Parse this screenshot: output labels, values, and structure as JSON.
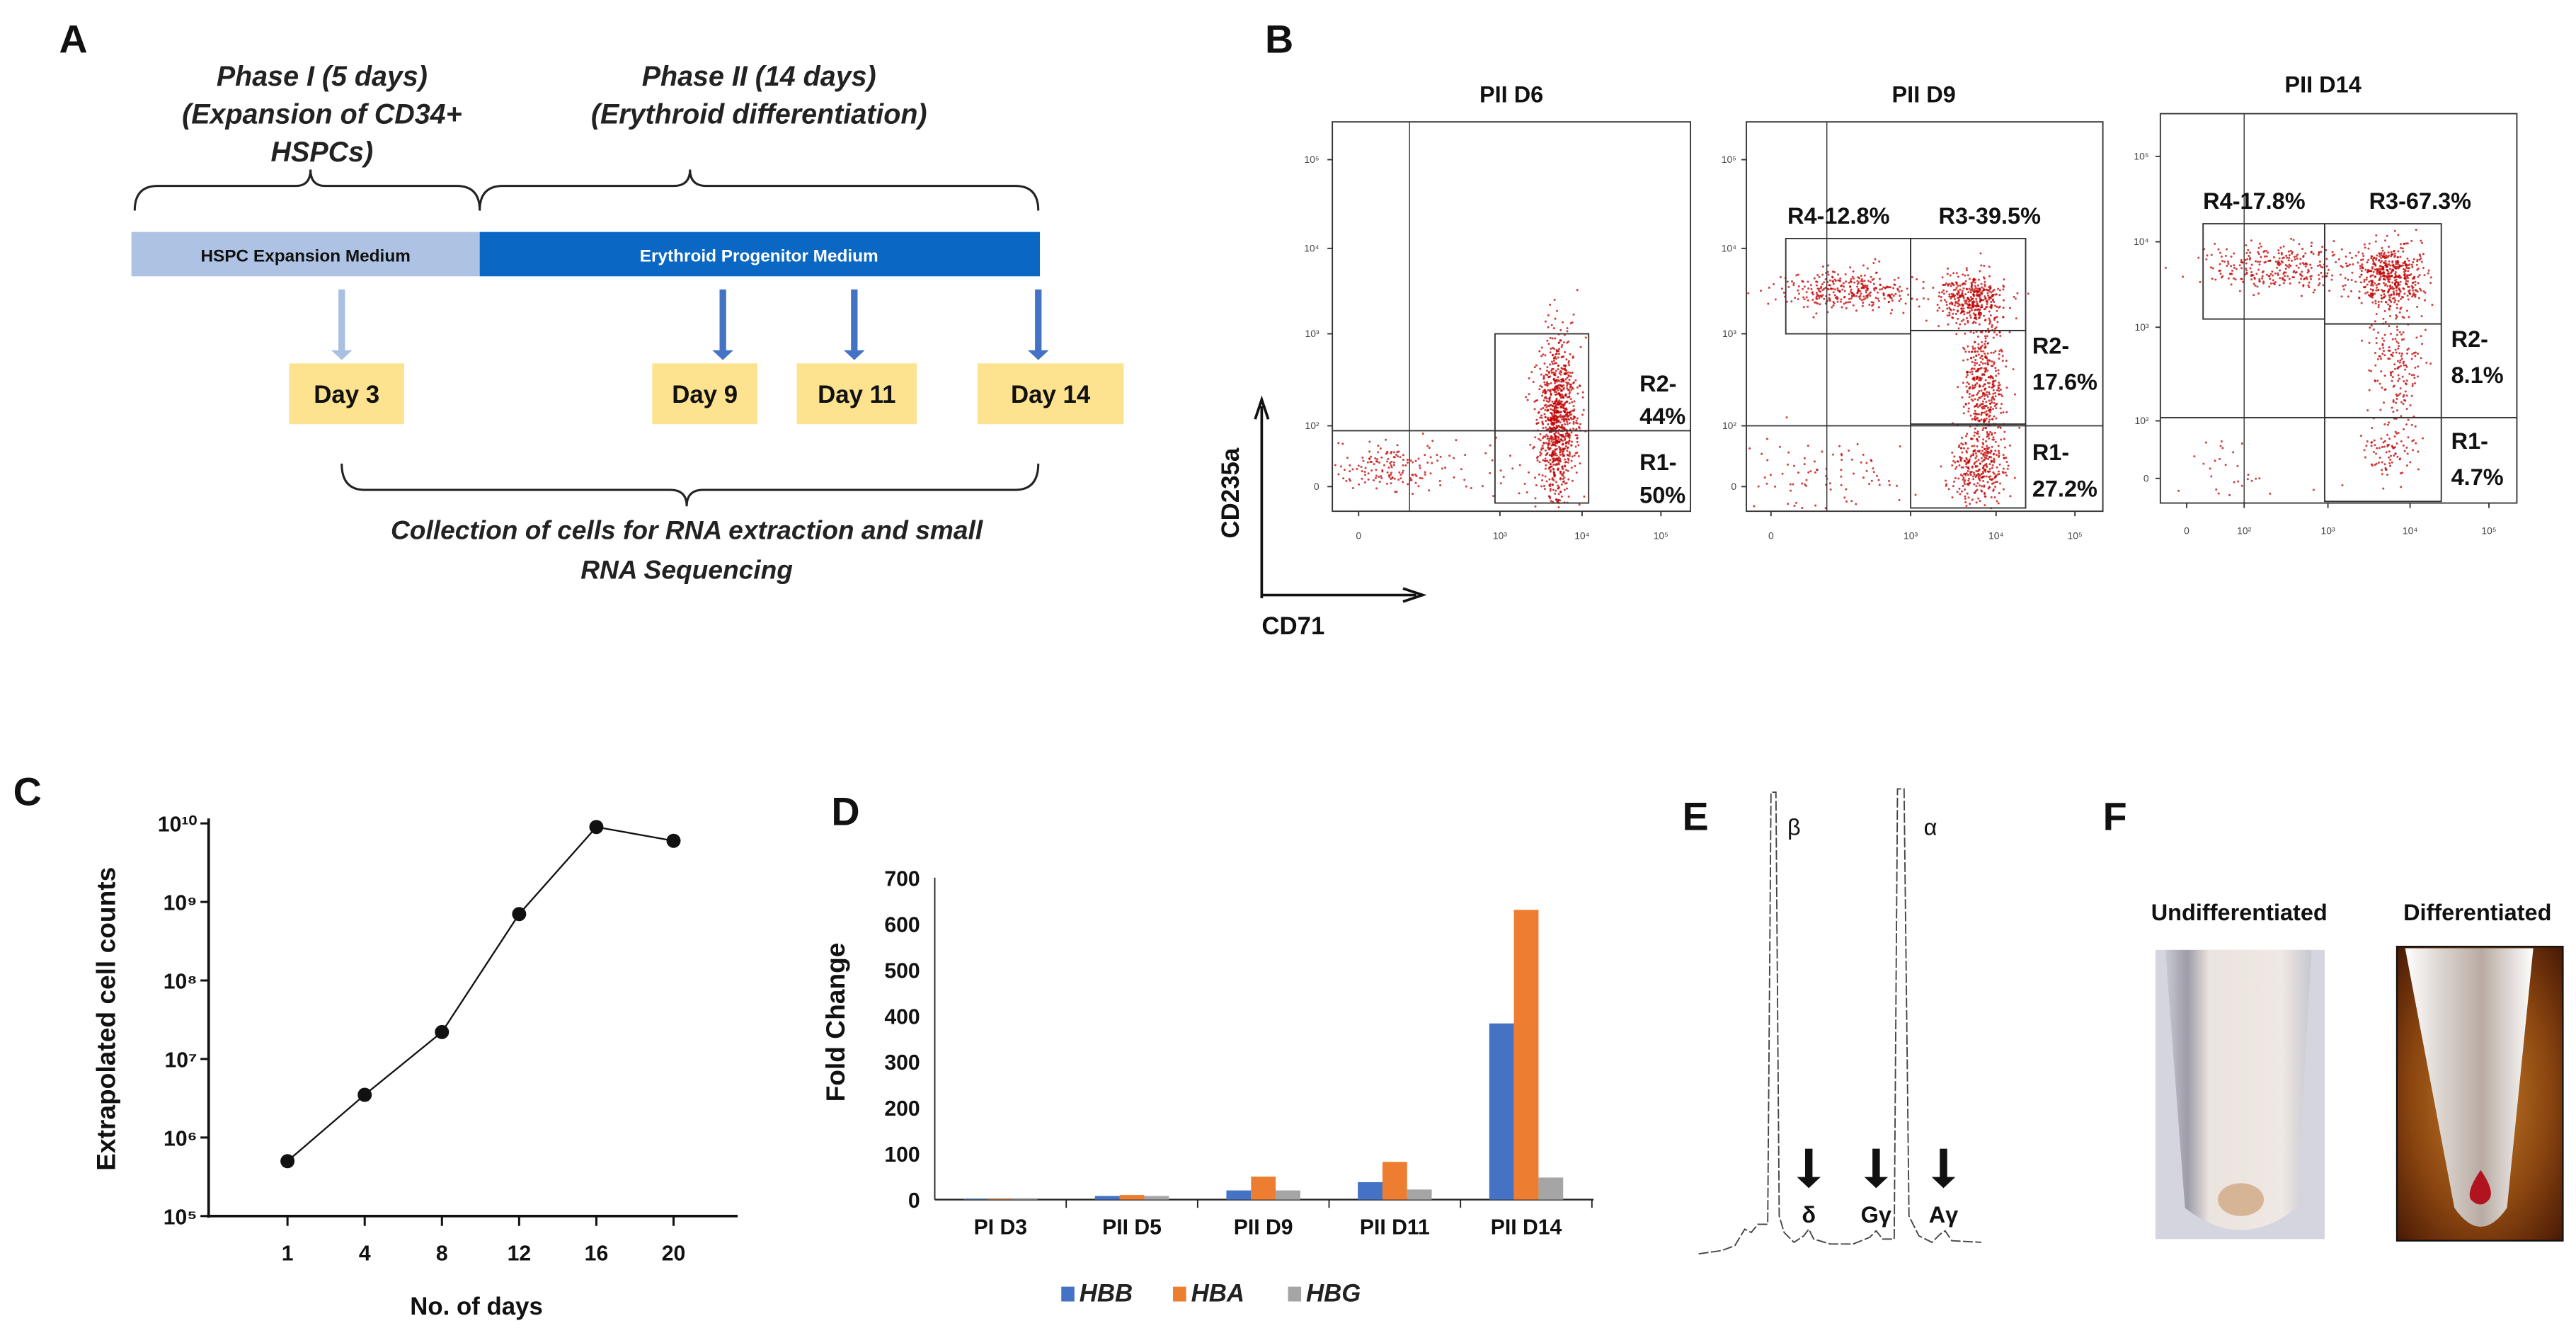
{
  "panel_labels": [
    "A",
    "B",
    "C",
    "D",
    "E",
    "F"
  ],
  "panel_a": {
    "phase1": [
      "Phase I (5 days)",
      "(Expansion of CD34+",
      "HSPCs)"
    ],
    "phase2": [
      "Phase II (14 days)",
      "(Erythroid differentiation)"
    ],
    "medium1": "HSPC Expansion Medium",
    "medium2": "Erythroid Progenitor Medium",
    "collection_days": [
      "Day 3",
      "Day 9",
      "Day 11",
      "Day 14"
    ],
    "collection_note": [
      "Collection of cells for RNA extraction and small",
      "RNA Sequencing"
    ],
    "colors": {
      "medium1": "#aec3e4",
      "medium2": "#0b67c4",
      "arrow_light": "#a9c0e2",
      "arrow_dark": "#4472c4",
      "day_box": "#fde28f"
    }
  },
  "chart_data": [
    {
      "id": "flow-cytometry",
      "type": "scatter",
      "xlabel": "CD71",
      "ylabel": "CD235a",
      "dot_color": "#c00000",
      "plots": [
        {
          "title": "PII D6",
          "x_ticks": [
            "0",
            "10³",
            "10⁴",
            "10⁵"
          ],
          "y_ticks": [
            "10⁵",
            "10⁴",
            "10³",
            "10²",
            "0"
          ],
          "gates": [
            {
              "name": "R2",
              "lines": [
                "R2-",
                "44%"
              ]
            },
            {
              "name": "R1",
              "lines": [
                "R1-",
                "50%"
              ]
            }
          ]
        },
        {
          "title": "PII D9",
          "x_ticks": [
            "0",
            "10³",
            "10⁴",
            "10⁵"
          ],
          "y_ticks": [
            "10⁵",
            "10⁴",
            "10³",
            "10²",
            "0"
          ],
          "gates": [
            {
              "name": "R4",
              "lines": [
                "R4-12.8%"
              ]
            },
            {
              "name": "R3",
              "lines": [
                "R3-39.5%"
              ]
            },
            {
              "name": "R2",
              "lines": [
                "R2-",
                "17.6%"
              ]
            },
            {
              "name": "R1",
              "lines": [
                "R1-",
                "27.2%"
              ]
            }
          ]
        },
        {
          "title": "PII D14",
          "x_ticks": [
            "0",
            "10²",
            "10³",
            "10⁴",
            "10⁵"
          ],
          "y_ticks": [
            "10⁵",
            "10⁴",
            "10³",
            "10²",
            "0"
          ],
          "gates": [
            {
              "name": "R4",
              "lines": [
                "R4-17.8%"
              ]
            },
            {
              "name": "R3",
              "lines": [
                "R3-67.3%"
              ]
            },
            {
              "name": "R2",
              "lines": [
                "R2-",
                "8.1%"
              ]
            },
            {
              "name": "R1",
              "lines": [
                "R1-",
                "4.7%"
              ]
            }
          ]
        }
      ]
    },
    {
      "id": "cell-growth",
      "type": "line",
      "x": [
        1,
        4,
        8,
        12,
        16,
        20
      ],
      "x_tick_labels": [
        "1",
        "4",
        "8",
        "12",
        "16",
        "20"
      ],
      "y": [
        500000,
        3500000,
        22000000,
        700000000,
        9000000000,
        6000000000
      ],
      "yscale": "log",
      "ylim": [
        100000,
        10000000000
      ],
      "y_tick_labels": [
        "10⁵",
        "10⁶",
        "10⁷",
        "10⁸",
        "10⁹",
        "10¹⁰"
      ],
      "xlabel": "No. of days",
      "ylabel": "Extrapolated cell counts"
    },
    {
      "id": "globin-expression",
      "type": "bar",
      "categories": [
        "PI D3",
        "PII D5",
        "PII D9",
        "PII D11",
        "PII D14"
      ],
      "series": [
        {
          "name": "HBB",
          "color": "#4472c4",
          "values": [
            1,
            8,
            20,
            38,
            383
          ]
        },
        {
          "name": "HBA",
          "color": "#ed7d31",
          "values": [
            1,
            10,
            50,
            82,
            630
          ]
        },
        {
          "name": "HBG",
          "color": "#a5a5a5",
          "values": [
            1,
            8,
            20,
            22,
            48
          ]
        }
      ],
      "ylim": [
        0,
        700
      ],
      "y_tick_labels": [
        "0",
        "100",
        "200",
        "300",
        "400",
        "500",
        "600",
        "700"
      ],
      "ylabel": "Fold Change",
      "legend": "bottom"
    },
    {
      "id": "hplc-globin-chains",
      "type": "line",
      "major_peaks": [
        "β",
        "α"
      ],
      "minor_peaks": [
        "δ",
        "Gγ",
        "Aγ"
      ]
    }
  ],
  "panel_f": {
    "labels": [
      "Undifferentiated",
      "Differentiated"
    ]
  }
}
